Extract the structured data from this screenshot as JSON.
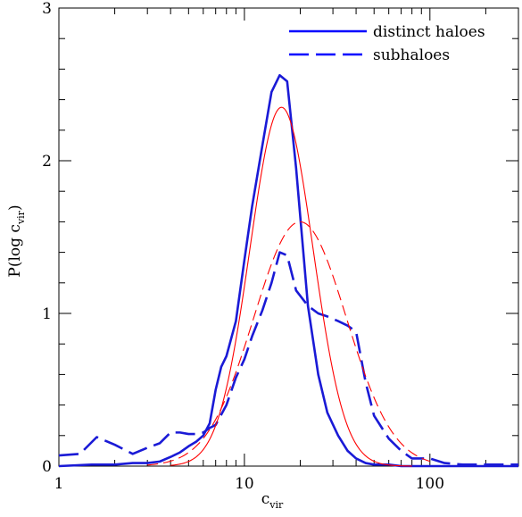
{
  "chart_data": {
    "type": "line",
    "title": "",
    "xlabel": "c",
    "xlabel_sub": "vir",
    "ylabel_main": "P(log c",
    "ylabel_sub": "vir",
    "ylabel_close": ")",
    "x_scale": "log",
    "xlim": [
      1,
      300
    ],
    "ylim": [
      0,
      3
    ],
    "x_ticks": [
      {
        "value": 1,
        "label": "1"
      },
      {
        "value": 10,
        "label": "10"
      },
      {
        "value": 100,
        "label": "100"
      }
    ],
    "y_ticks": [
      {
        "value": 0,
        "label": "0"
      },
      {
        "value": 1,
        "label": "1"
      },
      {
        "value": 2,
        "label": "2"
      },
      {
        "value": 3,
        "label": "3"
      }
    ],
    "legend": {
      "position": "top-right",
      "entries": [
        {
          "label": "distinct haloes",
          "style": "solid",
          "color": "#0000ff"
        },
        {
          "label": "subhaloes",
          "style": "dashed",
          "color": "#0000ff"
        }
      ]
    },
    "series": [
      {
        "name": "distinct haloes",
        "color": "#1a1ad6",
        "style": "solid",
        "width": 2.6,
        "x": [
          1,
          1.5,
          2,
          2.5,
          3,
          3.5,
          4,
          4.5,
          5,
          5.5,
          6,
          6.5,
          7,
          7.5,
          8,
          9,
          10,
          11,
          12.5,
          14,
          15.5,
          17,
          19,
          22,
          25,
          28,
          32,
          36,
          40,
          45,
          50,
          60,
          70,
          80,
          100,
          150,
          200,
          300
        ],
        "y": [
          0.0,
          0.01,
          0.01,
          0.02,
          0.02,
          0.03,
          0.06,
          0.09,
          0.13,
          0.16,
          0.2,
          0.28,
          0.5,
          0.65,
          0.72,
          0.95,
          1.35,
          1.7,
          2.1,
          2.45,
          2.56,
          2.52,
          1.95,
          1.05,
          0.6,
          0.35,
          0.2,
          0.1,
          0.05,
          0.02,
          0.01,
          0.01,
          0.0,
          0.0,
          0.0,
          0.0,
          0.0,
          0.0
        ]
      },
      {
        "name": "subhaloes",
        "color": "#1a1ad6",
        "style": "dashed",
        "width": 2.6,
        "x": [
          1,
          1.3,
          1.6,
          2,
          2.5,
          3,
          3.5,
          4,
          4.5,
          5,
          5.5,
          6,
          6.5,
          7,
          8,
          9,
          10,
          11,
          12.5,
          14,
          15.5,
          17,
          19,
          22,
          25,
          28,
          32,
          36,
          40,
          45,
          50,
          60,
          70,
          80,
          100,
          120,
          150,
          200,
          300
        ],
        "y": [
          0.07,
          0.08,
          0.19,
          0.14,
          0.08,
          0.12,
          0.15,
          0.22,
          0.22,
          0.21,
          0.21,
          0.22,
          0.25,
          0.27,
          0.4,
          0.58,
          0.7,
          0.85,
          1.02,
          1.2,
          1.4,
          1.38,
          1.15,
          1.05,
          1.0,
          0.98,
          0.95,
          0.92,
          0.88,
          0.55,
          0.33,
          0.18,
          0.1,
          0.05,
          0.05,
          0.02,
          0.01,
          0.01,
          0.01
        ]
      },
      {
        "name": "",
        "color": "#ff0000",
        "style": "solid",
        "width": 1.1,
        "lognormal": {
          "mean_log10": 1.2,
          "sigma_log10": 0.17,
          "peak": 2.35
        },
        "range": [
          4,
          80
        ]
      },
      {
        "name": "",
        "color": "#ff0000",
        "style": "dashed",
        "width": 1.1,
        "lognormal": {
          "mean_log10": 1.3,
          "sigma_log10": 0.25,
          "peak": 1.6
        },
        "range": [
          3,
          100
        ]
      }
    ]
  }
}
